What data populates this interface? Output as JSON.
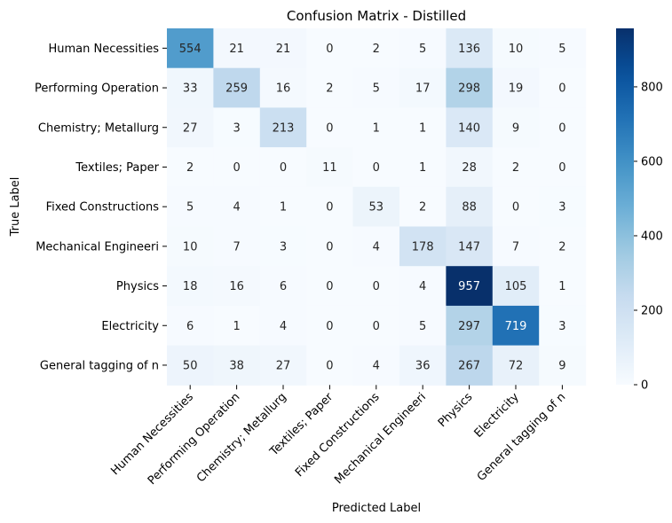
{
  "chart_data": {
    "type": "heatmap",
    "title": "Confusion Matrix - Distilled",
    "xlabel": "Predicted Label",
    "ylabel": "True Label",
    "rows": [
      "Human Necessities",
      "Performing Operation",
      "Chemistry; Metallurg",
      "Textiles; Paper",
      "Fixed Constructions",
      "Mechanical Engineeri",
      "Physics",
      "Electricity",
      "General tagging of n"
    ],
    "columns": [
      "Human Necessities",
      "Performing Operation",
      "Chemistry; Metallurg",
      "Textiles; Paper",
      "Fixed Constructions",
      "Mechanical Engineeri",
      "Physics",
      "Electricity",
      "General tagging of n"
    ],
    "values": [
      [
        554,
        21,
        21,
        0,
        2,
        5,
        136,
        10,
        5
      ],
      [
        33,
        259,
        16,
        2,
        5,
        17,
        298,
        19,
        0
      ],
      [
        27,
        3,
        213,
        0,
        1,
        1,
        140,
        9,
        0
      ],
      [
        2,
        0,
        0,
        11,
        0,
        1,
        28,
        2,
        0
      ],
      [
        5,
        4,
        1,
        0,
        53,
        2,
        88,
        0,
        3
      ],
      [
        10,
        7,
        3,
        0,
        4,
        178,
        147,
        7,
        2
      ],
      [
        18,
        16,
        6,
        0,
        0,
        4,
        957,
        105,
        1
      ],
      [
        6,
        1,
        4,
        0,
        0,
        5,
        297,
        719,
        3
      ],
      [
        50,
        38,
        27,
        0,
        4,
        36,
        267,
        72,
        9
      ]
    ],
    "colormap": "Blues",
    "color_range": [
      0,
      957
    ],
    "colorbar_ticks": [
      0,
      200,
      400,
      600,
      800
    ]
  }
}
